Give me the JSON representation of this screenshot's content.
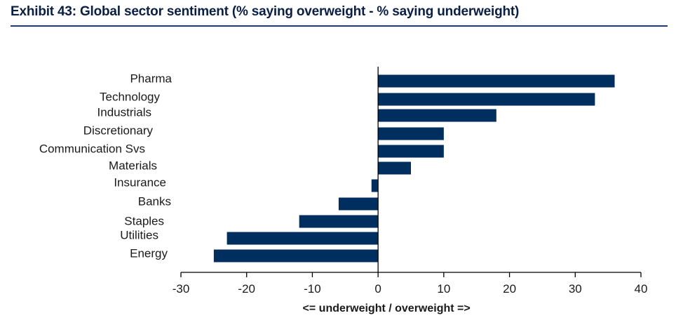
{
  "header": {
    "title": "Exhibit 43: Global sector sentiment (% saying overweight - % saying underweight)"
  },
  "chart_data": {
    "type": "bar",
    "orientation": "horizontal",
    "categories": [
      "Pharma",
      "Technology",
      "Industrials",
      "Discretionary",
      "Communication Svs",
      "Materials",
      "Insurance",
      "Banks",
      "Staples",
      "Utilities",
      "Energy"
    ],
    "values": [
      36,
      33,
      18,
      10,
      10,
      5,
      -1,
      -6,
      -12,
      -23,
      -25
    ],
    "xlabel": "<= underweight / overweight =>",
    "ylabel": "",
    "xlim": [
      -30,
      40
    ],
    "xticks": [
      "-30",
      "-20",
      "-10",
      "0",
      "10",
      "20",
      "30",
      "40"
    ],
    "bar_color": "#002f5f",
    "grid": false,
    "legend": "none"
  }
}
